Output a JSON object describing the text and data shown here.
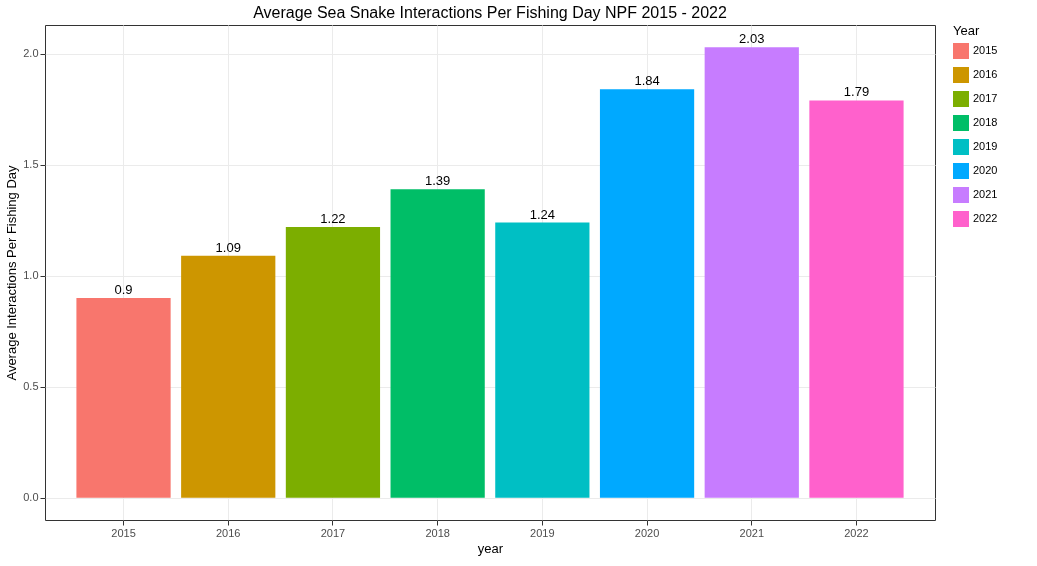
{
  "chart_data": {
    "type": "bar",
    "title": "Average Sea Snake Interactions Per Fishing Day NPF 2015 - 2022",
    "xlabel": "year",
    "ylabel": "Average Interactions Per Fishing Day",
    "legend_title": "Year",
    "categories": [
      "2015",
      "2016",
      "2017",
      "2018",
      "2019",
      "2020",
      "2021",
      "2022"
    ],
    "series": [
      {
        "name": "2015",
        "color": "#f8766d",
        "values": [
          0.9,
          null,
          null,
          null,
          null,
          null,
          null,
          null
        ]
      },
      {
        "name": "2016",
        "color": "#cd9600",
        "values": [
          null,
          1.09,
          null,
          null,
          null,
          null,
          null,
          null
        ]
      },
      {
        "name": "2017",
        "color": "#7cae00",
        "values": [
          null,
          null,
          1.22,
          null,
          null,
          null,
          null,
          null
        ]
      },
      {
        "name": "2018",
        "color": "#00be67",
        "values": [
          null,
          null,
          null,
          1.39,
          null,
          null,
          null,
          null
        ]
      },
      {
        "name": "2019",
        "color": "#00bfc4",
        "values": [
          null,
          null,
          null,
          null,
          1.24,
          null,
          null,
          null
        ]
      },
      {
        "name": "2020",
        "color": "#00a9ff",
        "values": [
          null,
          null,
          null,
          null,
          null,
          1.84,
          null,
          null
        ]
      },
      {
        "name": "2021",
        "color": "#c77cff",
        "values": [
          null,
          null,
          null,
          null,
          null,
          null,
          2.03,
          null
        ]
      },
      {
        "name": "2022",
        "color": "#ff61cc",
        "values": [
          null,
          null,
          null,
          null,
          null,
          null,
          null,
          1.79
        ]
      }
    ],
    "ylim": [
      -0.1,
      2.13
    ],
    "yticks": [
      {
        "value": 0,
        "label": "0.0"
      },
      {
        "value": 0.5,
        "label": "0.5"
      },
      {
        "value": 1,
        "label": "1.0"
      },
      {
        "value": 1.5,
        "label": "1.5"
      },
      {
        "value": 2,
        "label": "2.0"
      }
    ],
    "data_labels": true,
    "grid": true,
    "legend": "right"
  }
}
